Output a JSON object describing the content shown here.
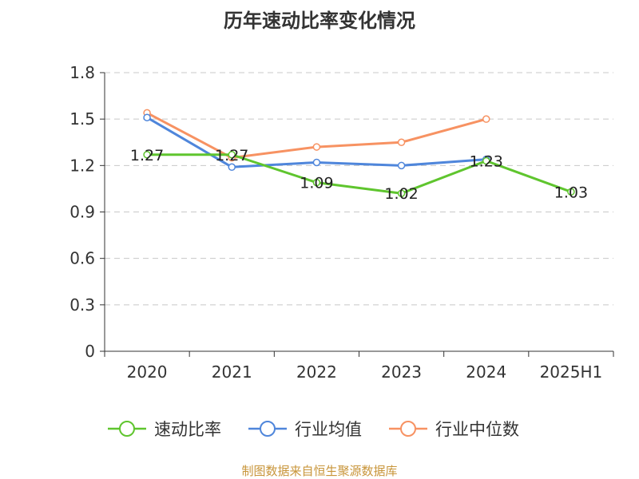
{
  "chart_data": {
    "type": "line",
    "title": "历年速动比率变化情况",
    "categories": [
      "2020",
      "2021",
      "2022",
      "2023",
      "2024",
      "2025H1"
    ],
    "ylim": [
      0,
      1.8
    ],
    "yticks": [
      "0",
      "0.3",
      "0.6",
      "0.9",
      "1.2",
      "1.5",
      "1.8"
    ],
    "grid": true,
    "legend_position": "bottom",
    "series": [
      {
        "name": "速动比率",
        "color": "#5fc52e",
        "values": [
          1.27,
          1.27,
          1.09,
          1.02,
          1.23,
          1.03
        ],
        "labels": [
          "1.27",
          "1.27",
          "1.09",
          "1.02",
          "1.23",
          "1.03"
        ]
      },
      {
        "name": "行业均值",
        "color": "#4f86db",
        "values": [
          1.51,
          1.19,
          1.22,
          1.2,
          1.24,
          null
        ]
      },
      {
        "name": "行业中位数",
        "color": "#f79262",
        "values": [
          1.54,
          1.25,
          1.32,
          1.35,
          1.5,
          null
        ]
      }
    ],
    "source": "制图数据来自恒生聚源数据库"
  }
}
